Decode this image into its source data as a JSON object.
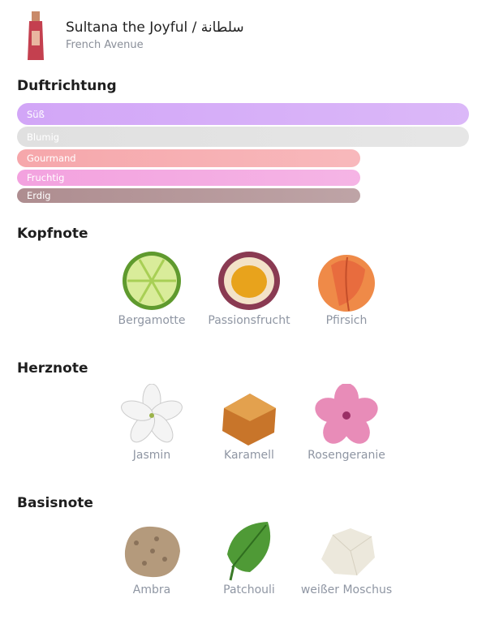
{
  "product": {
    "name": "Sultana the Joyful / سلطانة",
    "brand": "French Avenue"
  },
  "accords": {
    "title": "Duftrichtung",
    "items": [
      {
        "name": "Süß",
        "strength": 100,
        "color": "#d2a6f7"
      },
      {
        "name": "Blumig",
        "strength": 100,
        "color": "#e0e0e0"
      },
      {
        "name": "Gourmand",
        "strength": 76,
        "color": "#f6a7ab"
      },
      {
        "name": "Fruchtig",
        "strength": 76,
        "color": "#f3a2df"
      },
      {
        "name": "Erdig",
        "strength": 76,
        "color": "#ae8d90"
      }
    ]
  },
  "notes": [
    {
      "title": "Kopfnote",
      "items": [
        "Bergamotte",
        "Passionsfrucht",
        "Pfirsich"
      ]
    },
    {
      "title": "Herznote",
      "items": [
        "Jasmin",
        "Karamell",
        "Rosengeranie"
      ]
    },
    {
      "title": "Basisnote",
      "items": [
        "Ambra",
        "Patchouli",
        "weißer Moschus"
      ]
    }
  ]
}
